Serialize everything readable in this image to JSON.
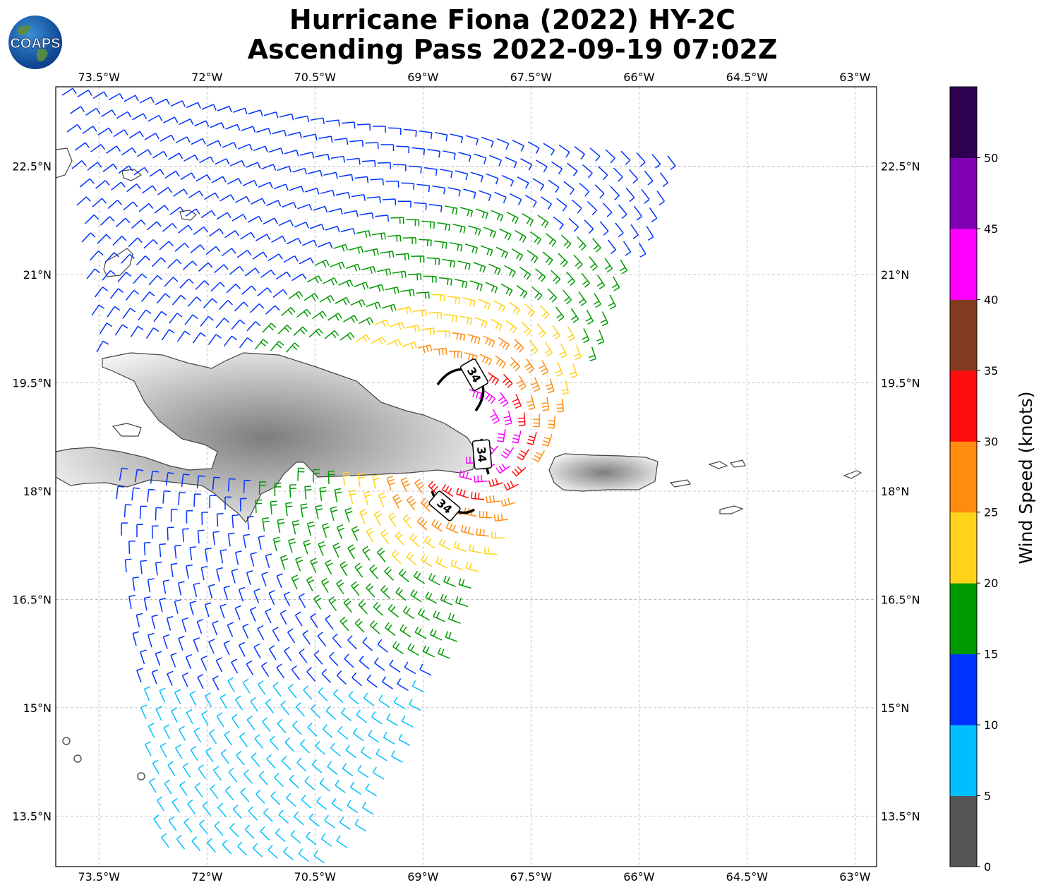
{
  "header": {
    "title_line1": "Hurricane Fiona (2022) HY-2C",
    "title_line2": "Ascending Pass 2022-09-19 07:02Z"
  },
  "logo": {
    "text": "COAPS",
    "icon": "globe-icon"
  },
  "map": {
    "lon_ticks": [
      "73.5°W",
      "72°W",
      "70.5°W",
      "69°W",
      "67.5°W",
      "66°W",
      "64.5°W",
      "63°W"
    ],
    "lat_ticks": [
      "22.5°N",
      "21°N",
      "19.5°N",
      "18°N",
      "16.5°N",
      "15°N",
      "13.5°N"
    ],
    "lon_values": [
      -73.5,
      -72,
      -70.5,
      -69,
      -67.5,
      -66,
      -64.5,
      -63
    ],
    "lat_values": [
      22.5,
      21,
      19.5,
      18,
      16.5,
      15,
      13.5
    ],
    "extent": {
      "lon_min": -74.1,
      "lon_max": -62.7,
      "lat_min": 12.8,
      "lat_max": 23.6
    },
    "contour_labels": [
      "34",
      "34",
      "34"
    ],
    "coastline_color": "#444444"
  },
  "colorbar": {
    "label": "Wind Speed (knots)",
    "tick_labels": [
      "0",
      "5",
      "10",
      "15",
      "20",
      "25",
      "30",
      "35",
      "40",
      "45",
      "50"
    ],
    "colors": [
      "#555555",
      "#00bfff",
      "#0033ff",
      "#009900",
      "#ffd31a",
      "#ff8c0f",
      "#ff0d0d",
      "#833b22",
      "#ff00ff",
      "#8000b3",
      "#2e0052"
    ]
  }
}
